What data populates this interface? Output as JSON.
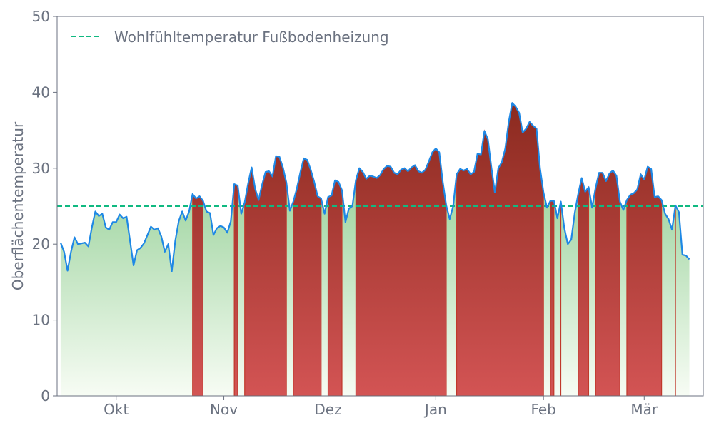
{
  "chart_data": {
    "type": "area",
    "title": "",
    "xlabel": "",
    "ylabel": "Oberflächentemperatur",
    "ylim": [
      0,
      50
    ],
    "xlim": [
      "2023-09-14",
      "2024-03-18"
    ],
    "y_ticks": [
      0,
      10,
      20,
      30,
      40,
      50
    ],
    "x_ticks": [
      {
        "date": "2023-10-01",
        "label": "Okt"
      },
      {
        "date": "2023-11-01",
        "label": "Nov"
      },
      {
        "date": "2023-12-01",
        "label": "Dez"
      },
      {
        "date": "2024-01-01",
        "label": "Jan"
      },
      {
        "date": "2024-02-01",
        "label": "Feb"
      },
      {
        "date": "2024-03-01",
        "label": "Mär"
      }
    ],
    "threshold": {
      "value": 25,
      "label": "Wohlfühltemperatur Fußbodenheizung",
      "color": "#10b981"
    },
    "legend_position": "top-left",
    "grid": false,
    "colors": {
      "line": "#1e88e5",
      "above_top": "#8b2a1f",
      "above_bottom": "#d35454",
      "below_top": "#7cc57f",
      "below_bottom": "#f7fcf4",
      "axis": "#6b7280"
    },
    "series": [
      {
        "start_date": "2023-09-15",
        "values": [
          20.2,
          19.0,
          16.5,
          19.0,
          20.9,
          20.0,
          20.1,
          20.2,
          19.7,
          22.2,
          24.3,
          23.7,
          24.0,
          22.2,
          21.9,
          22.9,
          22.9,
          23.9,
          23.4,
          23.6,
          20.4,
          17.2,
          19.2,
          19.5,
          20.1,
          21.2,
          22.3,
          21.9,
          22.1,
          21.0,
          19.0,
          20.0,
          16.4,
          20.4,
          23.0,
          24.3,
          23.1,
          24.3,
          26.6,
          26.0,
          26.3,
          25.7,
          24.3,
          24.1,
          21.2,
          22.1,
          22.4,
          22.2,
          21.5,
          23.0,
          27.9,
          27.7,
          24.0,
          25.5,
          28.0,
          30.1,
          27.3,
          25.8,
          27.8,
          29.5,
          29.6,
          28.9,
          31.6,
          31.5,
          30.1,
          28.1,
          24.4,
          25.6,
          27.3,
          29.4,
          31.3,
          31.1,
          29.8,
          28.2,
          26.3,
          26.0,
          24.0,
          26.2,
          26.4,
          28.4,
          28.2,
          27.1,
          22.9,
          24.7,
          25.0,
          28.4,
          30.0,
          29.5,
          28.6,
          29.0,
          28.9,
          28.7,
          29.1,
          29.9,
          30.3,
          30.2,
          29.4,
          29.2,
          29.8,
          30.0,
          29.6,
          30.1,
          30.4,
          29.6,
          29.4,
          29.8,
          30.9,
          32.1,
          32.6,
          32.1,
          28.2,
          25.1,
          23.3,
          25.0,
          29.2,
          29.9,
          29.7,
          29.9,
          29.2,
          29.5,
          31.9,
          31.8,
          34.9,
          33.8,
          30.1,
          26.8,
          30.0,
          30.8,
          32.6,
          36.1,
          38.6,
          38.1,
          37.3,
          34.7,
          35.2,
          36.1,
          35.6,
          35.2,
          30.0,
          26.8,
          24.8,
          25.7,
          25.7,
          23.4,
          25.6,
          22.1,
          20.0,
          20.6,
          24.1,
          26.6,
          28.7,
          26.9,
          27.5,
          24.8,
          27.4,
          29.4,
          29.4,
          28.3,
          29.3,
          29.7,
          29.0,
          25.6,
          24.5,
          25.8,
          26.5,
          26.7,
          27.2,
          29.2,
          28.5,
          30.2,
          29.9,
          26.2,
          26.3,
          25.8,
          24.0,
          23.3,
          21.9,
          25.1,
          24.2,
          18.6,
          18.5,
          18.0
        ]
      }
    ]
  }
}
